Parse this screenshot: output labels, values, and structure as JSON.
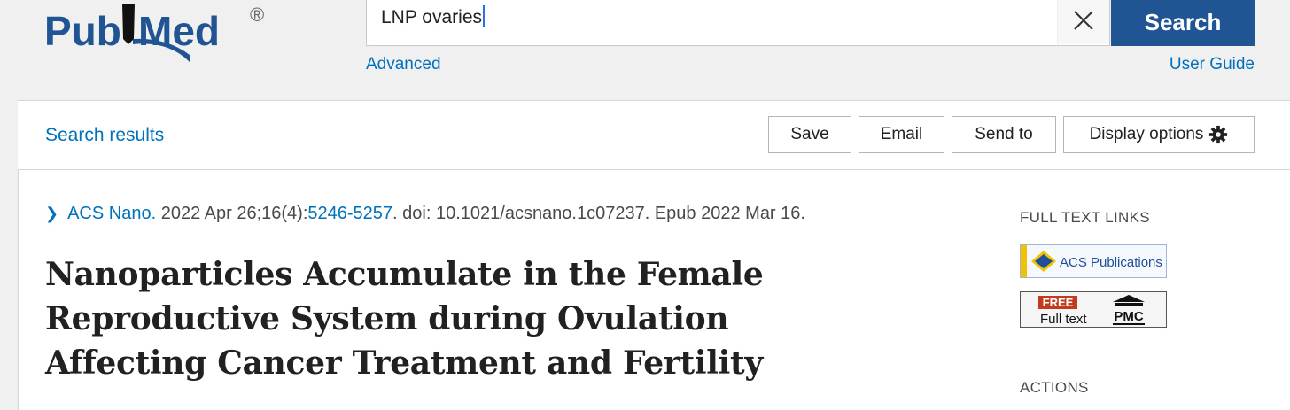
{
  "header": {
    "logo_text": "PubMed",
    "logo_mark": "®",
    "search": {
      "value": "LNP ovaries"
    },
    "search_button_label": "Search",
    "advanced_link": "Advanced",
    "user_guide_link": "User Guide"
  },
  "toolbar": {
    "back_link": "Search results",
    "buttons": [
      "Save",
      "Email",
      "Send to",
      "Display options"
    ]
  },
  "article": {
    "journal": "ACS Nano.",
    "date_issue": " 2022 Apr 26;16(4):",
    "pages": "5246-5257",
    "doi_epub": ". doi: 10.1021/acsnano.1c07237. Epub 2022 Mar 16.",
    "title": "Nanoparticles Accumulate in the Female Reproductive System during Ovulation Affecting Cancer Treatment and Fertility"
  },
  "sidebar": {
    "full_text_heading": "FULL TEXT LINKS",
    "acs_label": "ACS Publications",
    "pmc_free": "FREE",
    "pmc_fulltext": "Full text",
    "pmc_label": "PMC",
    "actions_heading": "ACTIONS"
  },
  "colors": {
    "brand": "#205493",
    "link": "#0071bc",
    "header_bg": "#f0f0f0"
  },
  "icons": [
    "pubmed-logo",
    "clear-icon",
    "gear-icon",
    "chevron-right-icon",
    "acs-logo-icon",
    "pmc-logo-icon"
  ]
}
